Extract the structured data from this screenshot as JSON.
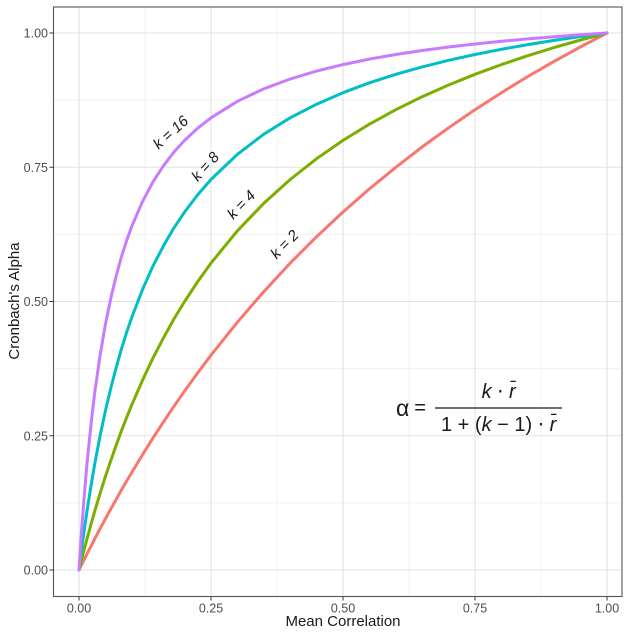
{
  "chart": {
    "xlabel": "Mean Correlation",
    "ylabel": "Cronbach's Alpha",
    "x_ticks": [
      "0.00",
      "0.25",
      "0.50",
      "0.75",
      "1.00"
    ],
    "y_ticks": [
      "0.00",
      "0.25",
      "0.50",
      "0.75",
      "1.00"
    ]
  },
  "formula": {
    "alpha": "α",
    "eq": "=",
    "num_k": "k",
    "num_dot": " ⋅ ",
    "num_r": "r̄",
    "den_pre": "1 + (",
    "den_k": "k",
    "den_mid": " − 1) ",
    "den_dot": "⋅ ",
    "den_r": "r̄"
  },
  "colors": {
    "k2": "#F8766D",
    "k4": "#7CAE00",
    "k8": "#00BFC4",
    "k16": "#C77CFF",
    "grid_major": "#E2E2E2",
    "grid_minor": "#F0F0F0",
    "panel_border": "#555555",
    "tick_mark": "#333333",
    "tick_label": "#4D4D4D",
    "text": "#1A1A1A",
    "fraction_bar": "#6F6F6F",
    "background": "#FFFFFF"
  },
  "chart_data": {
    "type": "line",
    "title": "",
    "xlabel": "Mean Correlation",
    "ylabel": "Cronbach's Alpha",
    "xlim": [
      0,
      1
    ],
    "ylim": [
      0,
      1
    ],
    "grid": true,
    "legend_position": "none (direct curve labels)",
    "x_tick_values": [
      0,
      0.25,
      0.5,
      0.75,
      1
    ],
    "y_tick_values": [
      0,
      0.25,
      0.5,
      0.75,
      1
    ],
    "minor_x": [
      0.125,
      0.375,
      0.625,
      0.875
    ],
    "minor_y": [
      0.125,
      0.375,
      0.625,
      0.875
    ],
    "annotation": "α = k ⋅ r̄ / (1 + (k − 1) ⋅ r̄)",
    "x": [
      0,
      0.005,
      0.01,
      0.015,
      0.02,
      0.025,
      0.03,
      0.04,
      0.05,
      0.06,
      0.07,
      0.08,
      0.09,
      0.1,
      0.12,
      0.14,
      0.16,
      0.18,
      0.2,
      0.225,
      0.25,
      0.3,
      0.35,
      0.4,
      0.45,
      0.5,
      0.55,
      0.6,
      0.65,
      0.7,
      0.75,
      0.8,
      0.85,
      0.9,
      0.95,
      1
    ],
    "series": [
      {
        "name": "k = 2",
        "k": 2,
        "color": "#F8766D",
        "values": [
          0,
          0.00995,
          0.0198,
          0.02956,
          0.03922,
          0.04878,
          0.05825,
          0.07692,
          0.09524,
          0.11321,
          0.13084,
          0.14815,
          0.16514,
          0.18182,
          0.21429,
          0.24561,
          0.27586,
          0.30508,
          0.33333,
          0.36735,
          0.4,
          0.46154,
          0.51852,
          0.57143,
          0.62069,
          0.66667,
          0.70968,
          0.75,
          0.78788,
          0.82353,
          0.85714,
          0.88889,
          0.91892,
          0.94737,
          0.97436,
          1
        ]
      },
      {
        "name": "k = 4",
        "k": 4,
        "color": "#7CAE00",
        "values": [
          0,
          0.0197,
          0.03883,
          0.05742,
          0.07547,
          0.09302,
          0.11009,
          0.14286,
          0.17391,
          0.20339,
          0.2314,
          0.25806,
          0.28346,
          0.30769,
          0.35294,
          0.39437,
          0.43243,
          0.46753,
          0.5,
          0.53731,
          0.57143,
          0.63158,
          0.68293,
          0.72727,
          0.76596,
          0.8,
          0.83019,
          0.85714,
          0.88136,
          0.90323,
          0.92308,
          0.94118,
          0.95775,
          0.97297,
          0.98701,
          1
        ]
      },
      {
        "name": "k = 8",
        "k": 8,
        "color": "#00BFC4",
        "values": [
          0,
          0.03865,
          0.07477,
          0.1086,
          0.14035,
          0.17021,
          0.19835,
          0.25,
          0.2963,
          0.33803,
          0.37584,
          0.41026,
          0.44172,
          0.47059,
          0.52174,
          0.56566,
          0.60377,
          0.63717,
          0.66667,
          0.69903,
          0.72727,
          0.77419,
          0.81159,
          0.84211,
          0.86747,
          0.88889,
          0.90722,
          0.92308,
          0.93694,
          0.94915,
          0.96,
          0.9697,
          0.97842,
          0.9863,
          0.99346,
          1
        ]
      },
      {
        "name": "k = 16",
        "k": 16,
        "color": "#C77CFF",
        "values": [
          0,
          0.07442,
          0.13913,
          0.19592,
          0.24615,
          0.29091,
          0.33103,
          0.4,
          0.45714,
          0.50526,
          0.54634,
          0.58182,
          0.61277,
          0.64,
          0.68571,
          0.72258,
          0.75294,
          0.77838,
          0.8,
          0.82286,
          0.84211,
          0.87273,
          0.896,
          0.91429,
          0.92903,
          0.94118,
          0.95135,
          0.96,
          0.96744,
          0.97391,
          0.97959,
          0.98462,
          0.98909,
          0.9931,
          0.99672,
          1
        ]
      }
    ],
    "curve_labels": [
      {
        "text": "k = 16",
        "x": 0.18,
        "y": 0.808,
        "angle": -42
      },
      {
        "text": "k = 8",
        "x": 0.246,
        "y": 0.745,
        "angle": -48
      },
      {
        "text": "k = 4",
        "x": 0.314,
        "y": 0.674,
        "angle": -46
      },
      {
        "text": "k = 2",
        "x": 0.396,
        "y": 0.6,
        "angle": -46
      }
    ]
  }
}
